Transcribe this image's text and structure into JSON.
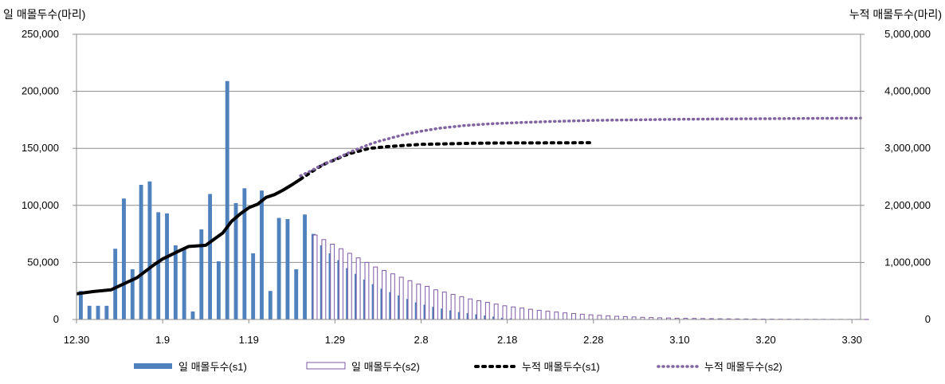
{
  "chart_data": {
    "type": "bar",
    "title": "",
    "y_left_label": "일 매몰두수(마리)",
    "y_right_label": "누적 매몰두수(마리)",
    "x_tick_labels": [
      "12.30",
      "1.9",
      "1.19",
      "1.29",
      "2.8",
      "2.18",
      "2.28",
      "3.10",
      "3.20",
      "3.30"
    ],
    "x_domain_days": 91,
    "y_left": {
      "min": 0,
      "max": 250000,
      "ticks": [
        "0",
        "50,000",
        "100,000",
        "150,000",
        "200,000",
        "250,000"
      ],
      "tick_values": [
        0,
        50000,
        100000,
        150000,
        200000,
        250000
      ]
    },
    "y_right": {
      "min": 0,
      "max": 5000000,
      "ticks": [
        "0",
        "1,000,000",
        "2,000,000",
        "3,000,000",
        "4,000,000",
        "5,000,000"
      ],
      "tick_values": [
        0,
        1000000,
        2000000,
        3000000,
        4000000,
        5000000
      ]
    },
    "grid": true,
    "legend_position": "bottom",
    "colors": {
      "s1_bar": "#4f81bd",
      "s2_bar_edge": "#7d5aa6",
      "s1_cum": "#000000",
      "s2_cum": "#8064a2",
      "grid": "#8c8c8c"
    },
    "series": [
      {
        "name": "일 매몰두수(s1)",
        "kind": "bar",
        "axis": "left",
        "x_start_day": 0,
        "values": [
          25000,
          12000,
          12000,
          12000,
          62000,
          106000,
          44000,
          118000,
          121000,
          94000,
          93000,
          65000,
          62000,
          7000,
          79000,
          110000,
          51000,
          209000,
          102000,
          115000,
          58000,
          113000,
          25000,
          89000,
          88000,
          44000,
          92000,
          75000,
          65000,
          58000,
          52000,
          45000,
          40000,
          35000,
          31000,
          27000,
          24000,
          21000,
          18000,
          15000,
          13000,
          11000,
          9500,
          8000,
          6500,
          5500,
          4500,
          3500,
          2500,
          1500,
          1000
        ]
      },
      {
        "name": "일 매몰두수(s2)",
        "kind": "bar",
        "axis": "left",
        "x_start_day": 27,
        "values": [
          74000,
          70000,
          66000,
          62000,
          58000,
          54000,
          50000,
          46000,
          43000,
          40000,
          37000,
          34000,
          31000,
          29000,
          26000,
          24000,
          22000,
          20000,
          18000,
          16500,
          15000,
          13500,
          12000,
          11000,
          10000,
          9000,
          8000,
          7200,
          6500,
          5800,
          5200,
          4600,
          4100,
          3600,
          3200,
          2800,
          2500,
          2200,
          1900,
          1700,
          1500,
          1300,
          1100,
          1000,
          900,
          800,
          700,
          600,
          550,
          500,
          450,
          400,
          350,
          300,
          260,
          230,
          200,
          180,
          160,
          140,
          120,
          100,
          90,
          80,
          70
        ]
      },
      {
        "name": "누적 매몰두수(s1)",
        "kind": "line",
        "axis": "right",
        "x": [
          0,
          2,
          4,
          6,
          7,
          9,
          10,
          12,
          13,
          15,
          17,
          18,
          19,
          20,
          21,
          22,
          23,
          24,
          25,
          26,
          27,
          28,
          29,
          30,
          31,
          32,
          33,
          34,
          36,
          38,
          40,
          43,
          46,
          50,
          55,
          60
        ],
        "values": [
          450000,
          490000,
          520000,
          660000,
          730000,
          960000,
          1060000,
          1210000,
          1280000,
          1300000,
          1520000,
          1720000,
          1850000,
          1960000,
          2020000,
          2140000,
          2190000,
          2270000,
          2360000,
          2460000,
          2560000,
          2660000,
          2740000,
          2800000,
          2870000,
          2920000,
          2960000,
          3000000,
          3030000,
          3050000,
          3070000,
          3080000,
          3090000,
          3095000,
          3097000,
          3099000
        ]
      },
      {
        "name": "누적 매몰두수(s2)",
        "kind": "line",
        "axis": "right",
        "x": [
          26,
          27,
          28,
          29,
          30,
          31,
          32,
          33,
          34,
          35,
          36,
          38,
          40,
          42,
          45,
          48,
          51,
          55,
          60,
          65,
          70,
          75,
          80,
          85,
          91
        ],
        "values": [
          2520000,
          2590000,
          2670000,
          2740000,
          2810000,
          2880000,
          2950000,
          3010000,
          3070000,
          3120000,
          3160000,
          3240000,
          3300000,
          3350000,
          3400000,
          3430000,
          3450000,
          3470000,
          3490000,
          3500000,
          3510000,
          3515000,
          3520000,
          3525000,
          3530000
        ]
      }
    ]
  }
}
